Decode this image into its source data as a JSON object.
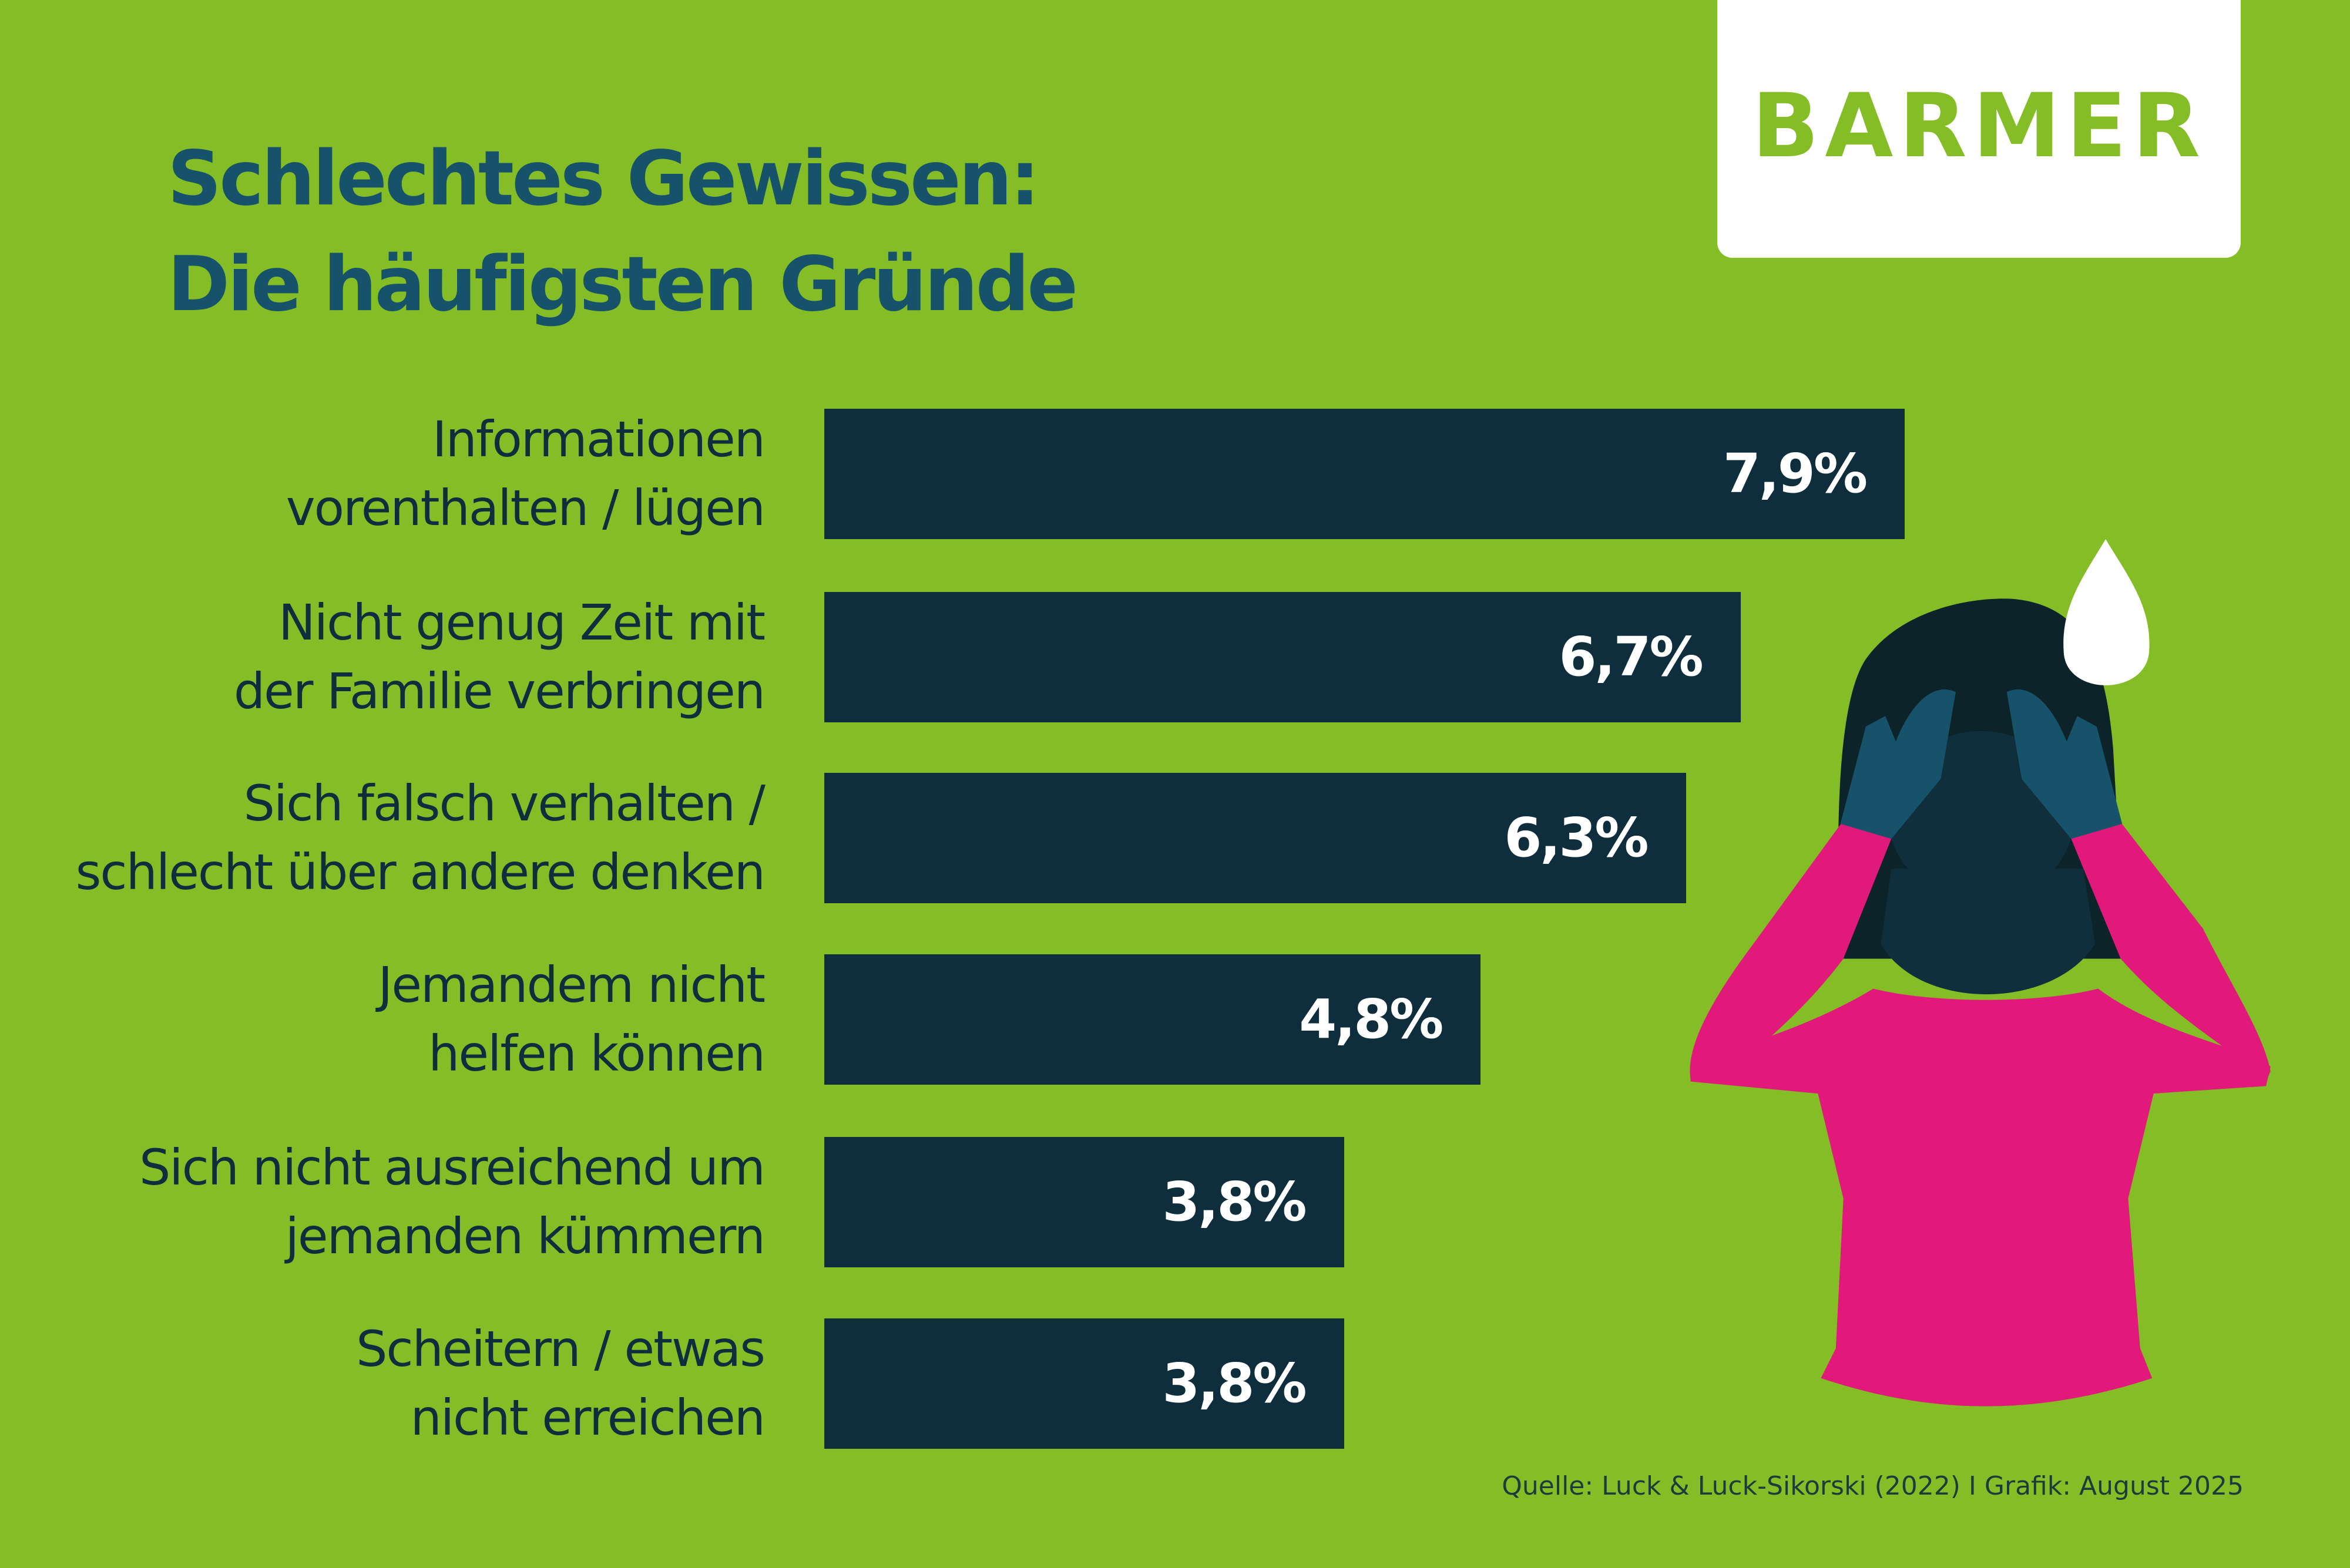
{
  "brand": {
    "logo_text": "BARMER"
  },
  "colors": {
    "background": "#84bd26",
    "bar": "#0f2e3d",
    "title": "#16536b",
    "value_text": "#ffffff",
    "shirt": "#e0197a"
  },
  "chart_data": {
    "type": "bar",
    "orientation": "horizontal",
    "title": [
      "Schlechtes Gewissen:",
      "Die häufigsten Gründe"
    ],
    "categories": [
      [
        "Informationen",
        "vorenthalten / lügen"
      ],
      [
        "Nicht genug Zeit mit",
        "der Familie verbringen"
      ],
      [
        "Sich falsch verhalten /",
        "schlecht über andere denken"
      ],
      [
        "Jemandem nicht",
        "helfen können"
      ],
      [
        "Sich nicht ausreichend um",
        "jemanden kümmern"
      ],
      [
        "Scheitern / etwas",
        "nicht erreichen"
      ]
    ],
    "values": [
      7.9,
      6.7,
      6.3,
      4.8,
      3.8,
      3.8
    ],
    "value_labels": [
      "7,9%",
      "6,7%",
      "6,3%",
      "4,8%",
      "3,8%",
      "3,8%"
    ],
    "unit": "%",
    "xlim": [
      0,
      7.9
    ],
    "grid": false,
    "legend": "none"
  },
  "footer": {
    "source": "Quelle: Luck & Luck-Sikorski (2022) I Grafik: August 2025"
  }
}
